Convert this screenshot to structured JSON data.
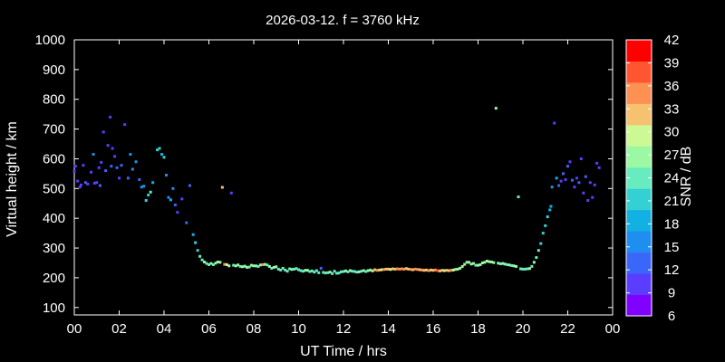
{
  "chart_data": {
    "type": "scatter",
    "title": "2026-03-12. f = 3760 kHz",
    "xlabel": "UT Time / hrs",
    "ylabel": "Virtual height / km",
    "xlim": [
      0,
      24
    ],
    "ylim": [
      75,
      1000
    ],
    "xticks": [
      "00",
      "02",
      "04",
      "06",
      "08",
      "10",
      "12",
      "14",
      "16",
      "18",
      "20",
      "22",
      "00"
    ],
    "yticks": [
      100,
      200,
      300,
      400,
      500,
      600,
      700,
      800,
      900,
      1000
    ],
    "grid": false,
    "background": "#000000",
    "colorbar": {
      "label": "SNR / dB",
      "range": [
        6,
        42
      ],
      "ticks": [
        42,
        39,
        36,
        33,
        30,
        27,
        24,
        21,
        18,
        15,
        12,
        9,
        6
      ],
      "colors": [
        "#7f00ff",
        "#5a3dff",
        "#3b66fa",
        "#1e8ef1",
        "#12b0e3",
        "#33d1d3",
        "#66ecbf",
        "#9bf9a3",
        "#ccf993",
        "#f6c270",
        "#ff9053",
        "#ff5530",
        "#ff0000"
      ]
    },
    "points": [
      [
        0.0,
        558,
        10
      ],
      [
        0.05,
        575,
        10
      ],
      [
        0.15,
        525,
        11
      ],
      [
        0.25,
        505,
        11
      ],
      [
        0.3,
        512,
        10
      ],
      [
        0.4,
        578,
        11
      ],
      [
        0.5,
        520,
        12
      ],
      [
        0.6,
        515,
        11
      ],
      [
        0.75,
        555,
        11
      ],
      [
        0.85,
        615,
        16
      ],
      [
        0.9,
        518,
        11
      ],
      [
        1.0,
        520,
        11
      ],
      [
        1.1,
        570,
        11
      ],
      [
        1.15,
        510,
        12
      ],
      [
        1.2,
        588,
        10
      ],
      [
        1.3,
        690,
        11
      ],
      [
        1.4,
        560,
        12
      ],
      [
        1.5,
        645,
        11
      ],
      [
        1.6,
        740,
        11
      ],
      [
        1.65,
        575,
        14
      ],
      [
        1.7,
        635,
        11
      ],
      [
        1.8,
        608,
        11
      ],
      [
        1.9,
        570,
        12
      ],
      [
        2.0,
        535,
        11
      ],
      [
        2.1,
        578,
        12
      ],
      [
        2.25,
        715,
        11
      ],
      [
        2.4,
        535,
        12
      ],
      [
        2.5,
        615,
        16
      ],
      [
        2.6,
        565,
        17
      ],
      [
        2.75,
        590,
        15
      ],
      [
        2.9,
        530,
        13
      ],
      [
        3.0,
        505,
        17
      ],
      [
        3.1,
        508,
        16
      ],
      [
        3.2,
        460,
        20
      ],
      [
        3.3,
        478,
        22
      ],
      [
        3.4,
        488,
        23
      ],
      [
        3.5,
        520,
        18
      ],
      [
        3.7,
        630,
        21
      ],
      [
        3.8,
        635,
        20
      ],
      [
        3.9,
        615,
        19
      ],
      [
        4.0,
        605,
        21
      ],
      [
        4.1,
        545,
        17
      ],
      [
        4.2,
        470,
        16
      ],
      [
        4.3,
        462,
        19
      ],
      [
        4.4,
        500,
        15
      ],
      [
        4.5,
        445,
        14
      ],
      [
        4.6,
        420,
        10
      ],
      [
        4.8,
        465,
        11
      ],
      [
        5.0,
        385,
        12
      ],
      [
        5.15,
        510,
        14
      ],
      [
        5.3,
        345,
        19
      ],
      [
        5.4,
        318,
        20
      ],
      [
        5.5,
        292,
        21
      ],
      [
        5.6,
        272,
        23
      ],
      [
        5.7,
        260,
        24
      ],
      [
        5.8,
        253,
        26
      ],
      [
        5.9,
        248,
        24
      ],
      [
        6.0,
        244,
        25
      ],
      [
        6.1,
        248,
        26
      ],
      [
        6.2,
        244,
        25
      ],
      [
        6.3,
        249,
        27
      ],
      [
        6.4,
        253,
        28
      ],
      [
        6.5,
        252,
        27
      ],
      [
        6.6,
        504,
        33
      ],
      [
        6.7,
        245,
        35
      ],
      [
        6.8,
        244,
        30
      ],
      [
        6.9,
        240,
        27
      ],
      [
        7.0,
        485,
        11
      ],
      [
        7.1,
        242,
        25
      ],
      [
        7.2,
        240,
        26
      ],
      [
        7.3,
        243,
        27
      ],
      [
        7.4,
        238,
        25
      ],
      [
        7.5,
        237,
        26
      ],
      [
        7.6,
        239,
        27
      ],
      [
        7.7,
        235,
        26
      ],
      [
        7.8,
        236,
        25
      ],
      [
        7.9,
        242,
        27
      ],
      [
        8.0,
        240,
        28
      ],
      [
        8.1,
        240,
        26
      ],
      [
        8.2,
        238,
        25
      ],
      [
        8.3,
        243,
        27
      ],
      [
        8.4,
        244,
        34
      ],
      [
        8.5,
        245,
        26
      ],
      [
        8.6,
        243,
        25
      ],
      [
        8.7,
        238,
        26
      ],
      [
        8.8,
        232,
        25
      ],
      [
        8.9,
        235,
        26
      ],
      [
        9.0,
        237,
        27
      ],
      [
        9.1,
        229,
        25
      ],
      [
        9.2,
        226,
        24
      ],
      [
        9.3,
        232,
        25
      ],
      [
        9.4,
        226,
        24
      ],
      [
        9.5,
        222,
        25
      ],
      [
        9.6,
        230,
        24
      ],
      [
        9.7,
        228,
        26
      ],
      [
        9.8,
        229,
        25
      ],
      [
        9.9,
        231,
        25
      ],
      [
        10.0,
        227,
        24
      ],
      [
        10.1,
        224,
        25
      ],
      [
        10.2,
        222,
        24
      ],
      [
        10.3,
        225,
        26
      ],
      [
        10.4,
        225,
        27
      ],
      [
        10.5,
        221,
        25
      ],
      [
        10.6,
        223,
        24
      ],
      [
        10.7,
        219,
        25
      ],
      [
        10.8,
        224,
        25
      ],
      [
        10.9,
        217,
        24
      ],
      [
        11.0,
        232,
        12
      ],
      [
        11.1,
        218,
        25
      ],
      [
        11.2,
        216,
        24
      ],
      [
        11.3,
        217,
        25
      ],
      [
        11.4,
        219,
        26
      ],
      [
        11.5,
        214,
        25
      ],
      [
        11.6,
        222,
        24
      ],
      [
        11.7,
        215,
        25
      ],
      [
        11.8,
        216,
        25
      ],
      [
        11.9,
        220,
        25
      ],
      [
        12.0,
        221,
        24
      ],
      [
        12.1,
        223,
        26
      ],
      [
        12.2,
        220,
        25
      ],
      [
        12.3,
        224,
        27
      ],
      [
        12.4,
        222,
        25
      ],
      [
        12.5,
        221,
        24
      ],
      [
        12.6,
        219,
        25
      ],
      [
        12.7,
        220,
        26
      ],
      [
        12.8,
        222,
        25
      ],
      [
        12.9,
        224,
        26
      ],
      [
        13.0,
        221,
        25
      ],
      [
        13.1,
        224,
        26
      ],
      [
        13.2,
        226,
        27
      ],
      [
        13.3,
        223,
        28
      ],
      [
        13.4,
        227,
        33
      ],
      [
        13.5,
        225,
        36
      ],
      [
        13.6,
        226,
        31
      ],
      [
        13.7,
        227,
        30
      ],
      [
        13.8,
        228,
        34
      ],
      [
        13.9,
        229,
        33
      ],
      [
        14.0,
        229,
        32
      ],
      [
        14.1,
        228,
        30
      ],
      [
        14.2,
        230,
        31
      ],
      [
        14.3,
        229,
        33
      ],
      [
        14.4,
        230,
        34
      ],
      [
        14.5,
        229,
        35
      ],
      [
        14.6,
        230,
        36
      ],
      [
        14.7,
        229,
        34
      ],
      [
        14.8,
        231,
        32
      ],
      [
        14.9,
        229,
        33
      ],
      [
        15.0,
        228,
        34
      ],
      [
        15.1,
        227,
        33
      ],
      [
        15.2,
        229,
        35
      ],
      [
        15.3,
        228,
        36
      ],
      [
        15.4,
        227,
        33
      ],
      [
        15.5,
        226,
        34
      ],
      [
        15.6,
        225,
        32
      ],
      [
        15.7,
        226,
        33
      ],
      [
        15.8,
        224,
        36
      ],
      [
        15.9,
        226,
        33
      ],
      [
        16.0,
        225,
        31
      ],
      [
        16.1,
        226,
        34
      ],
      [
        16.2,
        224,
        37
      ],
      [
        16.3,
        223,
        33
      ],
      [
        16.4,
        225,
        31
      ],
      [
        16.5,
        224,
        30
      ],
      [
        16.6,
        225,
        32
      ],
      [
        16.7,
        224,
        33
      ],
      [
        16.8,
        225,
        34
      ],
      [
        16.9,
        226,
        30
      ],
      [
        17.0,
        228,
        28
      ],
      [
        17.1,
        229,
        27
      ],
      [
        17.2,
        232,
        26
      ],
      [
        17.3,
        238,
        27
      ],
      [
        17.4,
        245,
        26
      ],
      [
        17.5,
        252,
        27
      ],
      [
        17.6,
        252,
        28
      ],
      [
        17.7,
        246,
        27
      ],
      [
        17.8,
        248,
        26
      ],
      [
        17.9,
        242,
        25
      ],
      [
        18.0,
        242,
        27
      ],
      [
        18.1,
        244,
        26
      ],
      [
        18.2,
        250,
        28
      ],
      [
        18.3,
        252,
        27
      ],
      [
        18.4,
        256,
        26
      ],
      [
        18.5,
        254,
        28
      ],
      [
        18.6,
        253,
        27
      ],
      [
        18.7,
        251,
        26
      ],
      [
        18.8,
        770,
        26
      ],
      [
        18.9,
        249,
        26
      ],
      [
        19.0,
        247,
        25
      ],
      [
        19.1,
        248,
        27
      ],
      [
        19.2,
        246,
        26
      ],
      [
        19.3,
        244,
        25
      ],
      [
        19.4,
        243,
        26
      ],
      [
        19.5,
        241,
        25
      ],
      [
        19.6,
        240,
        27
      ],
      [
        19.7,
        238,
        26
      ],
      [
        19.8,
        472,
        25
      ],
      [
        19.9,
        230,
        24
      ],
      [
        20.0,
        229,
        25
      ],
      [
        20.1,
        229,
        24
      ],
      [
        20.2,
        230,
        25
      ],
      [
        20.3,
        231,
        26
      ],
      [
        20.4,
        238,
        25
      ],
      [
        20.5,
        252,
        26
      ],
      [
        20.6,
        268,
        24
      ],
      [
        20.7,
        292,
        23
      ],
      [
        20.8,
        315,
        22
      ],
      [
        20.9,
        350,
        21
      ],
      [
        21.0,
        375,
        21
      ],
      [
        21.1,
        405,
        20
      ],
      [
        21.2,
        428,
        19
      ],
      [
        21.25,
        440,
        18
      ],
      [
        21.3,
        505,
        16
      ],
      [
        21.4,
        720,
        11
      ],
      [
        21.5,
        535,
        19
      ],
      [
        21.6,
        510,
        12
      ],
      [
        21.7,
        525,
        11
      ],
      [
        21.8,
        550,
        12
      ],
      [
        21.9,
        530,
        11
      ],
      [
        22.0,
        575,
        12
      ],
      [
        22.1,
        590,
        11
      ],
      [
        22.2,
        528,
        12
      ],
      [
        22.3,
        505,
        11
      ],
      [
        22.4,
        535,
        11
      ],
      [
        22.5,
        520,
        12
      ],
      [
        22.6,
        600,
        11
      ],
      [
        22.7,
        485,
        11
      ],
      [
        22.8,
        540,
        12
      ],
      [
        22.9,
        460,
        11
      ],
      [
        23.0,
        520,
        10
      ],
      [
        23.1,
        470,
        11
      ],
      [
        23.2,
        512,
        10
      ],
      [
        23.3,
        585,
        11
      ],
      [
        23.4,
        570,
        11
      ]
    ]
  }
}
